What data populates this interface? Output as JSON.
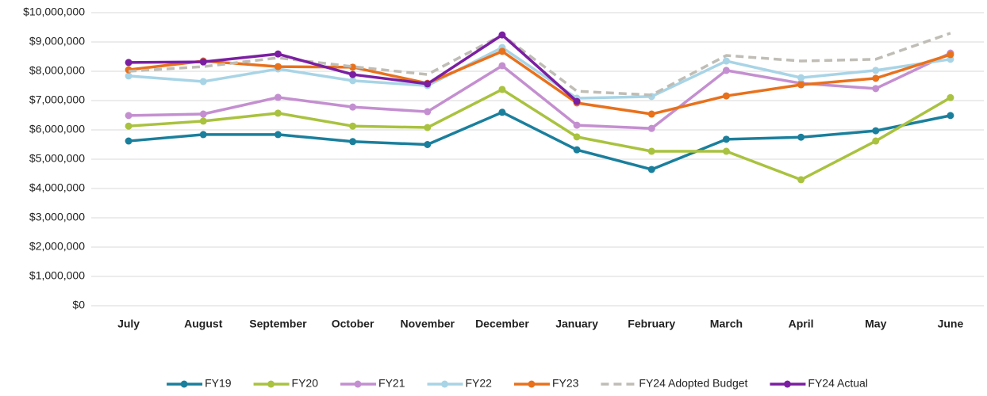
{
  "chart_data": {
    "type": "line",
    "categories": [
      "July",
      "August",
      "September",
      "October",
      "November",
      "December",
      "January",
      "February",
      "March",
      "April",
      "May",
      "June"
    ],
    "series": [
      {
        "name": "FY19",
        "color": "#1a7f9c",
        "values": [
          5620000,
          5840000,
          5840000,
          5600000,
          5500000,
          6600000,
          5320000,
          4650000,
          5680000,
          5750000,
          5970000,
          6490000
        ]
      },
      {
        "name": "FY20",
        "color": "#a9c23f",
        "values": [
          6130000,
          6300000,
          6570000,
          6130000,
          6080000,
          7380000,
          5760000,
          5270000,
          5270000,
          4300000,
          5620000,
          7100000
        ]
      },
      {
        "name": "FY21",
        "color": "#c48fd0",
        "values": [
          6490000,
          6540000,
          7110000,
          6780000,
          6620000,
          8190000,
          6160000,
          6050000,
          8030000,
          7590000,
          7410000,
          8620000
        ]
      },
      {
        "name": "FY22",
        "color": "#a8d4e6",
        "values": [
          7840000,
          7650000,
          8080000,
          7680000,
          7510000,
          8810000,
          7080000,
          7140000,
          8350000,
          7780000,
          8030000,
          8410000
        ]
      },
      {
        "name": "FY23",
        "color": "#e8711c",
        "values": [
          8050000,
          8350000,
          8160000,
          8140000,
          7590000,
          8680000,
          6920000,
          6540000,
          7160000,
          7540000,
          7760000,
          8570000
        ]
      },
      {
        "name": "FY24 Adopted Budget",
        "color": "#bfbdb5",
        "dashed": true,
        "markers": false,
        "values": [
          8000000,
          8160000,
          8460000,
          8160000,
          7890000,
          9240000,
          7320000,
          7190000,
          8540000,
          8350000,
          8410000,
          9300000
        ]
      },
      {
        "name": "FY24 Actual",
        "color": "#7b1fa2",
        "values": [
          8300000,
          8320000,
          8590000,
          7890000,
          7570000,
          9240000,
          6970000,
          null,
          null,
          null,
          null,
          null
        ]
      }
    ],
    "ylim": [
      0,
      10000000
    ],
    "yticks": [
      {
        "value": 0,
        "label": "$0"
      },
      {
        "value": 1000000,
        "label": "$1,000,000"
      },
      {
        "value": 2000000,
        "label": "$2,000,000"
      },
      {
        "value": 3000000,
        "label": "$3,000,000"
      },
      {
        "value": 4000000,
        "label": "$4,000,000"
      },
      {
        "value": 5000000,
        "label": "$5,000,000"
      },
      {
        "value": 6000000,
        "label": "$6,000,000"
      },
      {
        "value": 7000000,
        "label": "$7,000,000"
      },
      {
        "value": 8000000,
        "label": "$8,000,000"
      },
      {
        "value": 9000000,
        "label": "$9,000,000"
      },
      {
        "value": 10000000,
        "label": "$10,000,000"
      }
    ],
    "grid": true,
    "legend": "bottom"
  }
}
